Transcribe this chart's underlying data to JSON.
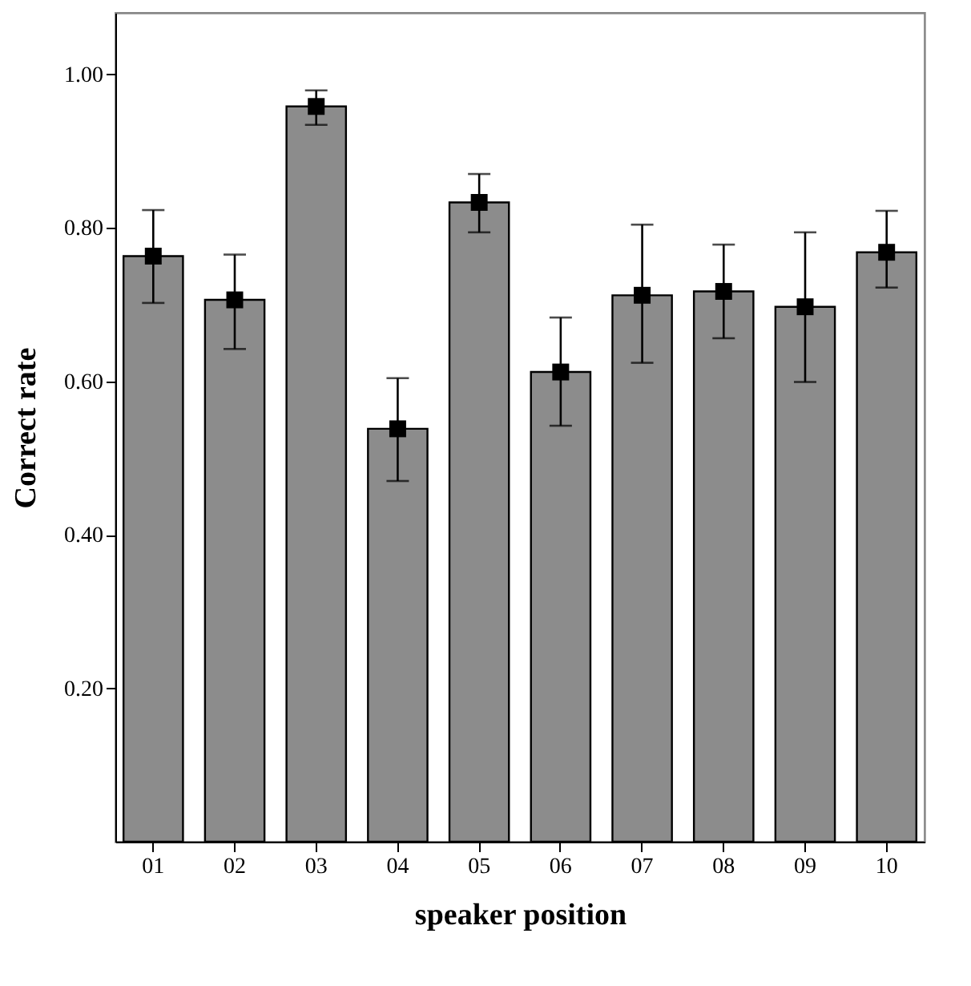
{
  "chart_data": {
    "type": "bar",
    "xlabel": "speaker position",
    "ylabel": "Correct rate",
    "categories": [
      "01",
      "02",
      "03",
      "04",
      "05",
      "06",
      "07",
      "08",
      "09",
      "10"
    ],
    "series": [
      {
        "color": "#8c8c8c",
        "values": [
          0.763,
          0.706,
          0.958,
          0.538,
          0.833,
          0.612,
          0.712,
          0.717,
          0.697,
          0.768
        ],
        "errors": [
          [
            0.702,
            0.823
          ],
          [
            0.642,
            0.765
          ],
          [
            0.934,
            0.979
          ],
          [
            0.47,
            0.604
          ],
          [
            0.794,
            0.87
          ],
          [
            0.542,
            0.683
          ],
          [
            0.624,
            0.804
          ],
          [
            0.656,
            0.778
          ],
          [
            0.599,
            0.794
          ],
          [
            0.722,
            0.822
          ]
        ]
      },
      {
        "type": "scatter",
        "color": "#000000",
        "marker": "square",
        "x": [
          "01",
          "02",
          "03",
          "04",
          "05",
          "06",
          "07",
          "08",
          "09",
          "10"
        ],
        "values": [
          0.763,
          0.706,
          0.958,
          0.538,
          0.833,
          0.612,
          0.712,
          0.717,
          0.697,
          0.768
        ]
      }
    ],
    "grid": false,
    "ylim": [
      0,
      1.08
    ],
    "yticks": [
      {
        "value": 0.2,
        "label": "0.20"
      },
      {
        "value": 0.4,
        "label": "0.40"
      },
      {
        "value": 0.6,
        "label": "0.60"
      },
      {
        "value": 0.8,
        "label": "0.80"
      },
      {
        "value": 1,
        "label": "1.00"
      }
    ]
  }
}
